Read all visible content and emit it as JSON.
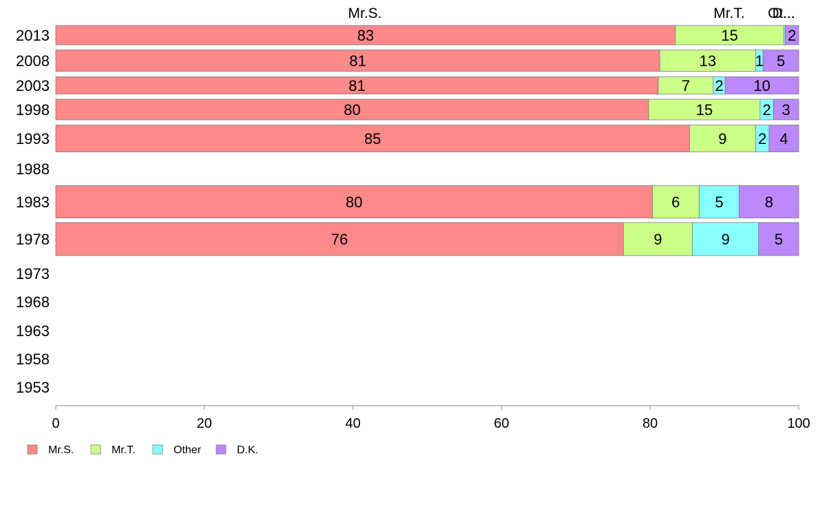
{
  "chart_data": {
    "type": "bar",
    "orientation": "horizontal",
    "stacked": true,
    "xlim": [
      0,
      100
    ],
    "x_ticks": [
      0,
      20,
      40,
      60,
      80,
      100
    ],
    "legend_position": "bottom-left",
    "grid": false,
    "categories": [
      "2013",
      "2008",
      "2003",
      "1998",
      "1993",
      "1988",
      "1983",
      "1978",
      "1973",
      "1968",
      "1963",
      "1958",
      "1953"
    ],
    "top_labels": [
      "Mr.S.",
      "Mr.T.",
      "Ot...",
      "D..."
    ],
    "series": [
      {
        "name": "Mr.S.",
        "color": "#ff8888",
        "values": [
          83.4,
          81.3,
          81.1,
          79.8,
          85.3,
          null,
          80.3,
          76.4,
          null,
          null,
          null,
          null,
          null
        ],
        "labels": [
          "83",
          "81",
          "81",
          "80",
          "85",
          "",
          "80",
          "76",
          "",
          "",
          "",
          "",
          ""
        ]
      },
      {
        "name": "Mr.T.",
        "color": "#ccff88",
        "values": [
          14.6,
          12.9,
          7.4,
          15.0,
          8.9,
          null,
          6.3,
          9.3,
          null,
          null,
          null,
          null,
          null
        ],
        "labels": [
          "15",
          "13",
          "7",
          "15",
          "9",
          "",
          "6",
          "9",
          "",
          "",
          "",
          "",
          ""
        ]
      },
      {
        "name": "Other",
        "color": "#88ffff",
        "values": [
          0.2,
          1.0,
          1.6,
          1.8,
          1.8,
          null,
          5.4,
          8.9,
          null,
          null,
          null,
          null,
          null
        ],
        "labels": [
          "",
          "1",
          "2",
          "2",
          "2",
          "",
          "5",
          "9",
          "",
          "",
          "",
          "",
          ""
        ]
      },
      {
        "name": "D.K.",
        "color": "#bb88ff",
        "values": [
          1.8,
          4.8,
          9.9,
          3.4,
          4.0,
          null,
          8.0,
          5.4,
          null,
          null,
          null,
          null,
          null
        ],
        "labels": [
          "2",
          "5",
          "10",
          "3",
          "4",
          "",
          "8",
          "5",
          "",
          "",
          "",
          "",
          ""
        ]
      }
    ]
  }
}
